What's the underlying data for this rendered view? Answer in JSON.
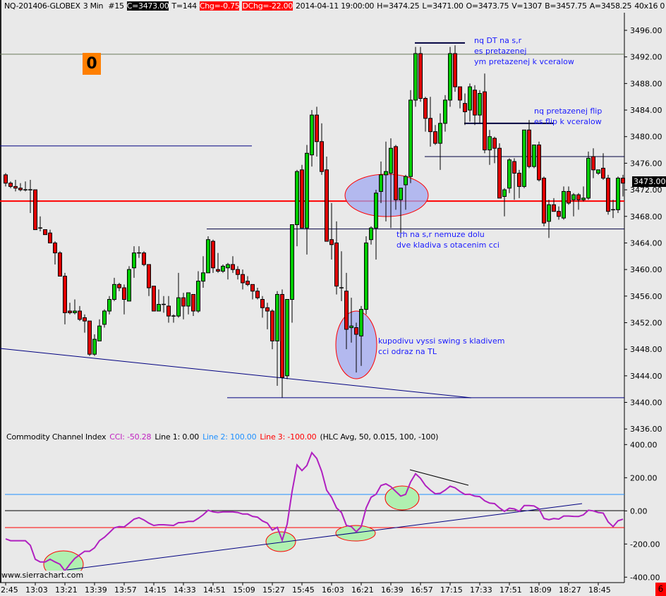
{
  "header": {
    "symbol": "NQ-201406-GLOBEX",
    "timeframe": "3 Min",
    "bar_number": "#15",
    "close": "C=3473.00",
    "ticks": "T=144",
    "change": "Chg=-0.75",
    "day_change": "DChg=-22.00",
    "datetime": "2014-04-11 19:00:00",
    "high": "H=3474.25",
    "low": "L=3471.00",
    "open": "O=3473.75",
    "volume": "V=1307",
    "bid": "B=3457.75",
    "ask": "A=3458.25",
    "extra": "40x16 0 BV"
  },
  "indicator_legend": {
    "name": "Commodity Channel Index",
    "cci": "CCI: -50.28",
    "line1": "Line 1: 0.00",
    "line2": "Line 2: 100.00",
    "line3": "Line 3: -100.00",
    "params": "(HLC Avg, 50, 0.015, 100, -100)"
  },
  "order_counter": "0",
  "current_price_label": "3473.00",
  "watermark": "www.sierrachart.com",
  "corner_badge": "6",
  "annotations": {
    "top1": "nq DT na s,r",
    "top2": "es pretazenej",
    "top3": "ym pretazenej k vceralow",
    "flip1": "nq pretazenej flip",
    "flip2": "es flip k vceralow",
    "mid1": "trh na s,r nemuze dolu",
    "mid2": "dve kladiva s otacenim cci",
    "low1": "kupodivu vyssi swing s kladivem",
    "low2": "cci odraz na TL"
  },
  "colors": {
    "up": "#00cc00",
    "down": "#e00000",
    "cci": "#b020c0",
    "level_line": "#ff0000",
    "drawing": "#000080",
    "annotation": "#1a1aff",
    "line2": "#1e90ff",
    "line3": "#ff0000"
  },
  "chart_data": [
    {
      "type": "candlestick",
      "title": "NQ-201406-GLOBEX 3 Min",
      "y_range": [
        3436,
        3498
      ],
      "y_ticks": [
        "3496.00",
        "3492.00",
        "3488.00",
        "3484.00",
        "3480.00",
        "3476.00",
        "3472.00",
        "3468.00",
        "3464.00",
        "3460.00",
        "3456.00",
        "3452.00",
        "3448.00",
        "3444.00",
        "3440.00",
        "3436.00"
      ],
      "x_ticks": [
        "2:45",
        "13:03",
        "13:21",
        "13:39",
        "13:57",
        "14:15",
        "14:33",
        "14:51",
        "15:09",
        "15:27",
        "15:45",
        "16:03",
        "16:21",
        "16:39",
        "16:57",
        "17:15",
        "17:33",
        "17:51",
        "18:09",
        "18:27",
        "18:45"
      ],
      "ohlc_fields": [
        "open",
        "high",
        "low",
        "close"
      ],
      "ohlc": [
        [
          3474.25,
          3474.5,
          3472.5,
          3473
        ],
        [
          3473,
          3473.25,
          3472.25,
          3472.5
        ],
        [
          3472.5,
          3473.5,
          3471.75,
          3472.25
        ],
        [
          3472.25,
          3473,
          3471.75,
          3472
        ],
        [
          3472,
          3473.25,
          3471.75,
          3472
        ],
        [
          3472,
          3473.5,
          3468.5,
          3472
        ],
        [
          3472,
          3472,
          3466,
          3466
        ],
        [
          3466.25,
          3468,
          3465.75,
          3466.25
        ],
        [
          3466,
          3466,
          3465.25,
          3465.25
        ],
        [
          3465.5,
          3466,
          3464,
          3464
        ],
        [
          3464,
          3464.25,
          3460.75,
          3462.5
        ],
        [
          3462.5,
          3462.75,
          3459,
          3459
        ],
        [
          3459,
          3459.5,
          3451.75,
          3453.5
        ],
        [
          3453.75,
          3455,
          3453.25,
          3453.5
        ],
        [
          3453.5,
          3455.5,
          3453.25,
          3453.75
        ],
        [
          3453.75,
          3454.5,
          3452.25,
          3452.5
        ],
        [
          3452.75,
          3453.25,
          3450.5,
          3452.25
        ],
        [
          3452.25,
          3452.25,
          3447,
          3447.25
        ],
        [
          3447.25,
          3450.25,
          3447,
          3449.5
        ],
        [
          3449.25,
          3452.5,
          3449.25,
          3451.5
        ],
        [
          3451.75,
          3454,
          3451.25,
          3453.75
        ],
        [
          3453.75,
          3456,
          3453.25,
          3455.5
        ],
        [
          3455.5,
          3458.75,
          3455.25,
          3457.75
        ],
        [
          3457.75,
          3458,
          3456.75,
          3457.25
        ],
        [
          3457.25,
          3457.75,
          3453.25,
          3455.5
        ],
        [
          3455.25,
          3460.5,
          3455.25,
          3460
        ],
        [
          3460.25,
          3463.5,
          3458.75,
          3462.5
        ],
        [
          3462.5,
          3463.5,
          3461.75,
          3462.5
        ],
        [
          3462.5,
          3462.75,
          3460.5,
          3460.75
        ],
        [
          3460.75,
          3460.75,
          3456,
          3457.25
        ],
        [
          3457.5,
          3457.5,
          3453.75,
          3453.75
        ],
        [
          3453.75,
          3457,
          3453.75,
          3454.75
        ],
        [
          3454.75,
          3456,
          3453.5,
          3454.75
        ],
        [
          3454.5,
          3456,
          3452,
          3453
        ],
        [
          3453,
          3453.25,
          3452,
          3453
        ],
        [
          3453,
          3459.5,
          3452.75,
          3455.75
        ],
        [
          3455.75,
          3456.5,
          3452.5,
          3454.5
        ],
        [
          3454.5,
          3456.5,
          3453.25,
          3456.5
        ],
        [
          3456.25,
          3456.25,
          3453,
          3453.75
        ],
        [
          3453.75,
          3459.75,
          3453.5,
          3458.25
        ],
        [
          3458.25,
          3462,
          3457.25,
          3459.5
        ],
        [
          3459.5,
          3465,
          3459.5,
          3464.5
        ],
        [
          3464.25,
          3464.5,
          3459.5,
          3460.25
        ],
        [
          3460,
          3462.5,
          3459.5,
          3459.75
        ],
        [
          3459.75,
          3460.75,
          3459.5,
          3460.5
        ],
        [
          3460.25,
          3461,
          3458.5,
          3460.75
        ],
        [
          3460.75,
          3462,
          3459.5,
          3460
        ],
        [
          3460,
          3460.5,
          3458.5,
          3459.25
        ],
        [
          3459.25,
          3460,
          3457,
          3458
        ],
        [
          3458.25,
          3459,
          3457.5,
          3457.75
        ],
        [
          3457.75,
          3457.75,
          3455.5,
          3456.75
        ],
        [
          3456.75,
          3457.25,
          3455.5,
          3455.75
        ],
        [
          3455.5,
          3456,
          3452.75,
          3454.25
        ],
        [
          3454.25,
          3455,
          3451,
          3453.75
        ],
        [
          3453.75,
          3454,
          3448,
          3449.25
        ],
        [
          3449.25,
          3456.75,
          3442.5,
          3456.25
        ],
        [
          3456.25,
          3457,
          3440.75,
          3443.75
        ],
        [
          3444,
          3455.5,
          3443.5,
          3455.5
        ],
        [
          3455.5,
          3466.75,
          3452,
          3466.75
        ],
        [
          3466.75,
          3475,
          3463.5,
          3474.75
        ],
        [
          3475,
          3475.75,
          3466.25,
          3466.25
        ],
        [
          3466.25,
          3478.75,
          3462.25,
          3477.5
        ],
        [
          3477.25,
          3484,
          3475.5,
          3483.25
        ],
        [
          3483.25,
          3484.5,
          3477,
          3479.25
        ],
        [
          3479.25,
          3482,
          3474.25,
          3474.75
        ],
        [
          3475,
          3477,
          3464.25,
          3464.25
        ],
        [
          3464.5,
          3470,
          3461.5,
          3463.75
        ],
        [
          3464,
          3467.25,
          3456.25,
          3457.5
        ],
        [
          3457.25,
          3462.75,
          3455.25,
          3457.25
        ],
        [
          3456.75,
          3459.5,
          3448,
          3451
        ],
        [
          3451.25,
          3455.75,
          3449,
          3451.5
        ],
        [
          3451.25,
          3452,
          3444.5,
          3450.25
        ],
        [
          3450,
          3454.5,
          3445.5,
          3454
        ],
        [
          3454,
          3465,
          3453.25,
          3464
        ],
        [
          3464.5,
          3466.5,
          3463.75,
          3466.25
        ],
        [
          3466.25,
          3472,
          3461.5,
          3471.5
        ],
        [
          3471.75,
          3476.25,
          3470,
          3474.25
        ],
        [
          3474.25,
          3479.25,
          3467.25,
          3474.75
        ],
        [
          3474.5,
          3479.75,
          3466.25,
          3478.25
        ],
        [
          3478.5,
          3478.75,
          3469,
          3470.5
        ],
        [
          3470.5,
          3472.25,
          3464.75,
          3472.25
        ],
        [
          3472.75,
          3474.25,
          3469,
          3474
        ],
        [
          3474,
          3487,
          3473,
          3485.5
        ],
        [
          3485.5,
          3493.5,
          3484.5,
          3492.5
        ],
        [
          3492.5,
          3493.5,
          3485.25,
          3485.75
        ],
        [
          3485.75,
          3486,
          3480.75,
          3482.75
        ],
        [
          3482.75,
          3486,
          3478.5,
          3480.75
        ],
        [
          3480.75,
          3481.75,
          3478.75,
          3479
        ],
        [
          3479,
          3483.5,
          3475,
          3482
        ],
        [
          3482,
          3486.25,
          3480.75,
          3485.5
        ],
        [
          3485.5,
          3493.5,
          3484.5,
          3492.5
        ],
        [
          3492.5,
          3493.75,
          3486.75,
          3487.5
        ],
        [
          3487.5,
          3487.5,
          3484.25,
          3485.5
        ],
        [
          3485,
          3486.5,
          3481.75,
          3483.75
        ],
        [
          3484,
          3488,
          3482.25,
          3487.5
        ],
        [
          3487,
          3487.75,
          3481.75,
          3483.25
        ],
        [
          3483.25,
          3487,
          3482,
          3486.5
        ],
        [
          3486.75,
          3489.5,
          3477.5,
          3478
        ],
        [
          3478,
          3481,
          3475.75,
          3480
        ],
        [
          3479.75,
          3480,
          3476,
          3478.25
        ],
        [
          3478.25,
          3479,
          3470.75,
          3470.75
        ],
        [
          3471,
          3472.25,
          3468,
          3472
        ],
        [
          3472.25,
          3476.75,
          3471.5,
          3476.5
        ],
        [
          3476.25,
          3476.75,
          3470.5,
          3474.5
        ],
        [
          3474.5,
          3475,
          3470.75,
          3472.5
        ],
        [
          3472.5,
          3481,
          3472.25,
          3481
        ],
        [
          3481,
          3482.5,
          3475.25,
          3475.5
        ],
        [
          3475.5,
          3478.75,
          3475.25,
          3478.75
        ],
        [
          3478.75,
          3479.25,
          3473.25,
          3473.5
        ],
        [
          3473.75,
          3474,
          3466.5,
          3467
        ],
        [
          3467.25,
          3470.5,
          3464.75,
          3469.75
        ],
        [
          3469.75,
          3470.75,
          3468.75,
          3468.75
        ],
        [
          3468.75,
          3469.5,
          3467.5,
          3468
        ],
        [
          3467.75,
          3472.5,
          3467.5,
          3471.75
        ],
        [
          3471.75,
          3472.5,
          3469.75,
          3470
        ],
        [
          3470.5,
          3471.5,
          3468,
          3471.25
        ],
        [
          3471.25,
          3471.5,
          3469,
          3470.5
        ],
        [
          3470.5,
          3472.5,
          3470.25,
          3470.75
        ],
        [
          3470.75,
          3477.75,
          3470.5,
          3476.75
        ],
        [
          3477,
          3478.25,
          3473.75,
          3475
        ],
        [
          3474.5,
          3475,
          3474.25,
          3475
        ],
        [
          3475.25,
          3477.5,
          3473.5,
          3473.75
        ],
        [
          3473.75,
          3474.25,
          3468.25,
          3468.75
        ],
        [
          3469,
          3470.5,
          3467.75,
          3469
        ],
        [
          3469,
          3474,
          3468.5,
          3473.75
        ],
        [
          3473.75,
          3474.25,
          3471,
          3473
        ]
      ],
      "levels": {
        "red_support": 3470.3,
        "gray_resistance": 3492.4,
        "left_level": 3478.6,
        "right_level_upper": 3477,
        "right_level_lower": 3466.1,
        "bottom_level": 3440.7,
        "double_top": 3494.1,
        "flip_level": 3482.0
      }
    },
    {
      "type": "line",
      "title": "Commodity Channel Index",
      "y_range": [
        -420,
        420
      ],
      "y_ticks": [
        "400.00",
        "200.00",
        "0.00",
        "-200.00",
        "-400.00"
      ],
      "reference_lines": [
        0,
        100,
        -100
      ],
      "series": [
        {
          "name": "CCI",
          "values": [
            -169,
            -180,
            -180,
            -180,
            -180,
            -208,
            -292,
            -308,
            -308,
            -292,
            -308,
            -322,
            -362,
            -322,
            -287,
            -265,
            -244,
            -244,
            -223,
            -180,
            -159,
            -131,
            -102,
            -95,
            -97,
            -74,
            -50,
            -41,
            -55,
            -74,
            -88,
            -84,
            -84,
            -86,
            -88,
            -71,
            -70,
            -64,
            -64,
            -45,
            -24,
            4,
            -6,
            -10,
            -6,
            -6,
            -6,
            -10,
            -19,
            -19,
            -33,
            -38,
            -61,
            -74,
            -116,
            -99,
            -177,
            -81,
            117,
            277,
            243,
            274,
            351,
            316,
            238,
            125,
            82,
            18,
            -10,
            -88,
            -95,
            -126,
            -95,
            18,
            82,
            100,
            153,
            163,
            146,
            117,
            89,
            100,
            174,
            224,
            196,
            153,
            125,
            103,
            106,
            125,
            149,
            139,
            117,
            99,
            100,
            89,
            86,
            61,
            47,
            44,
            18,
            -3,
            16,
            12,
            -3,
            32,
            32,
            30,
            12,
            -46,
            -53,
            -46,
            -50,
            -31,
            -31,
            -33,
            -34,
            -24,
            4,
            0,
            -10,
            -13,
            -67,
            -95,
            -60,
            -50.28
          ]
        }
      ]
    }
  ]
}
